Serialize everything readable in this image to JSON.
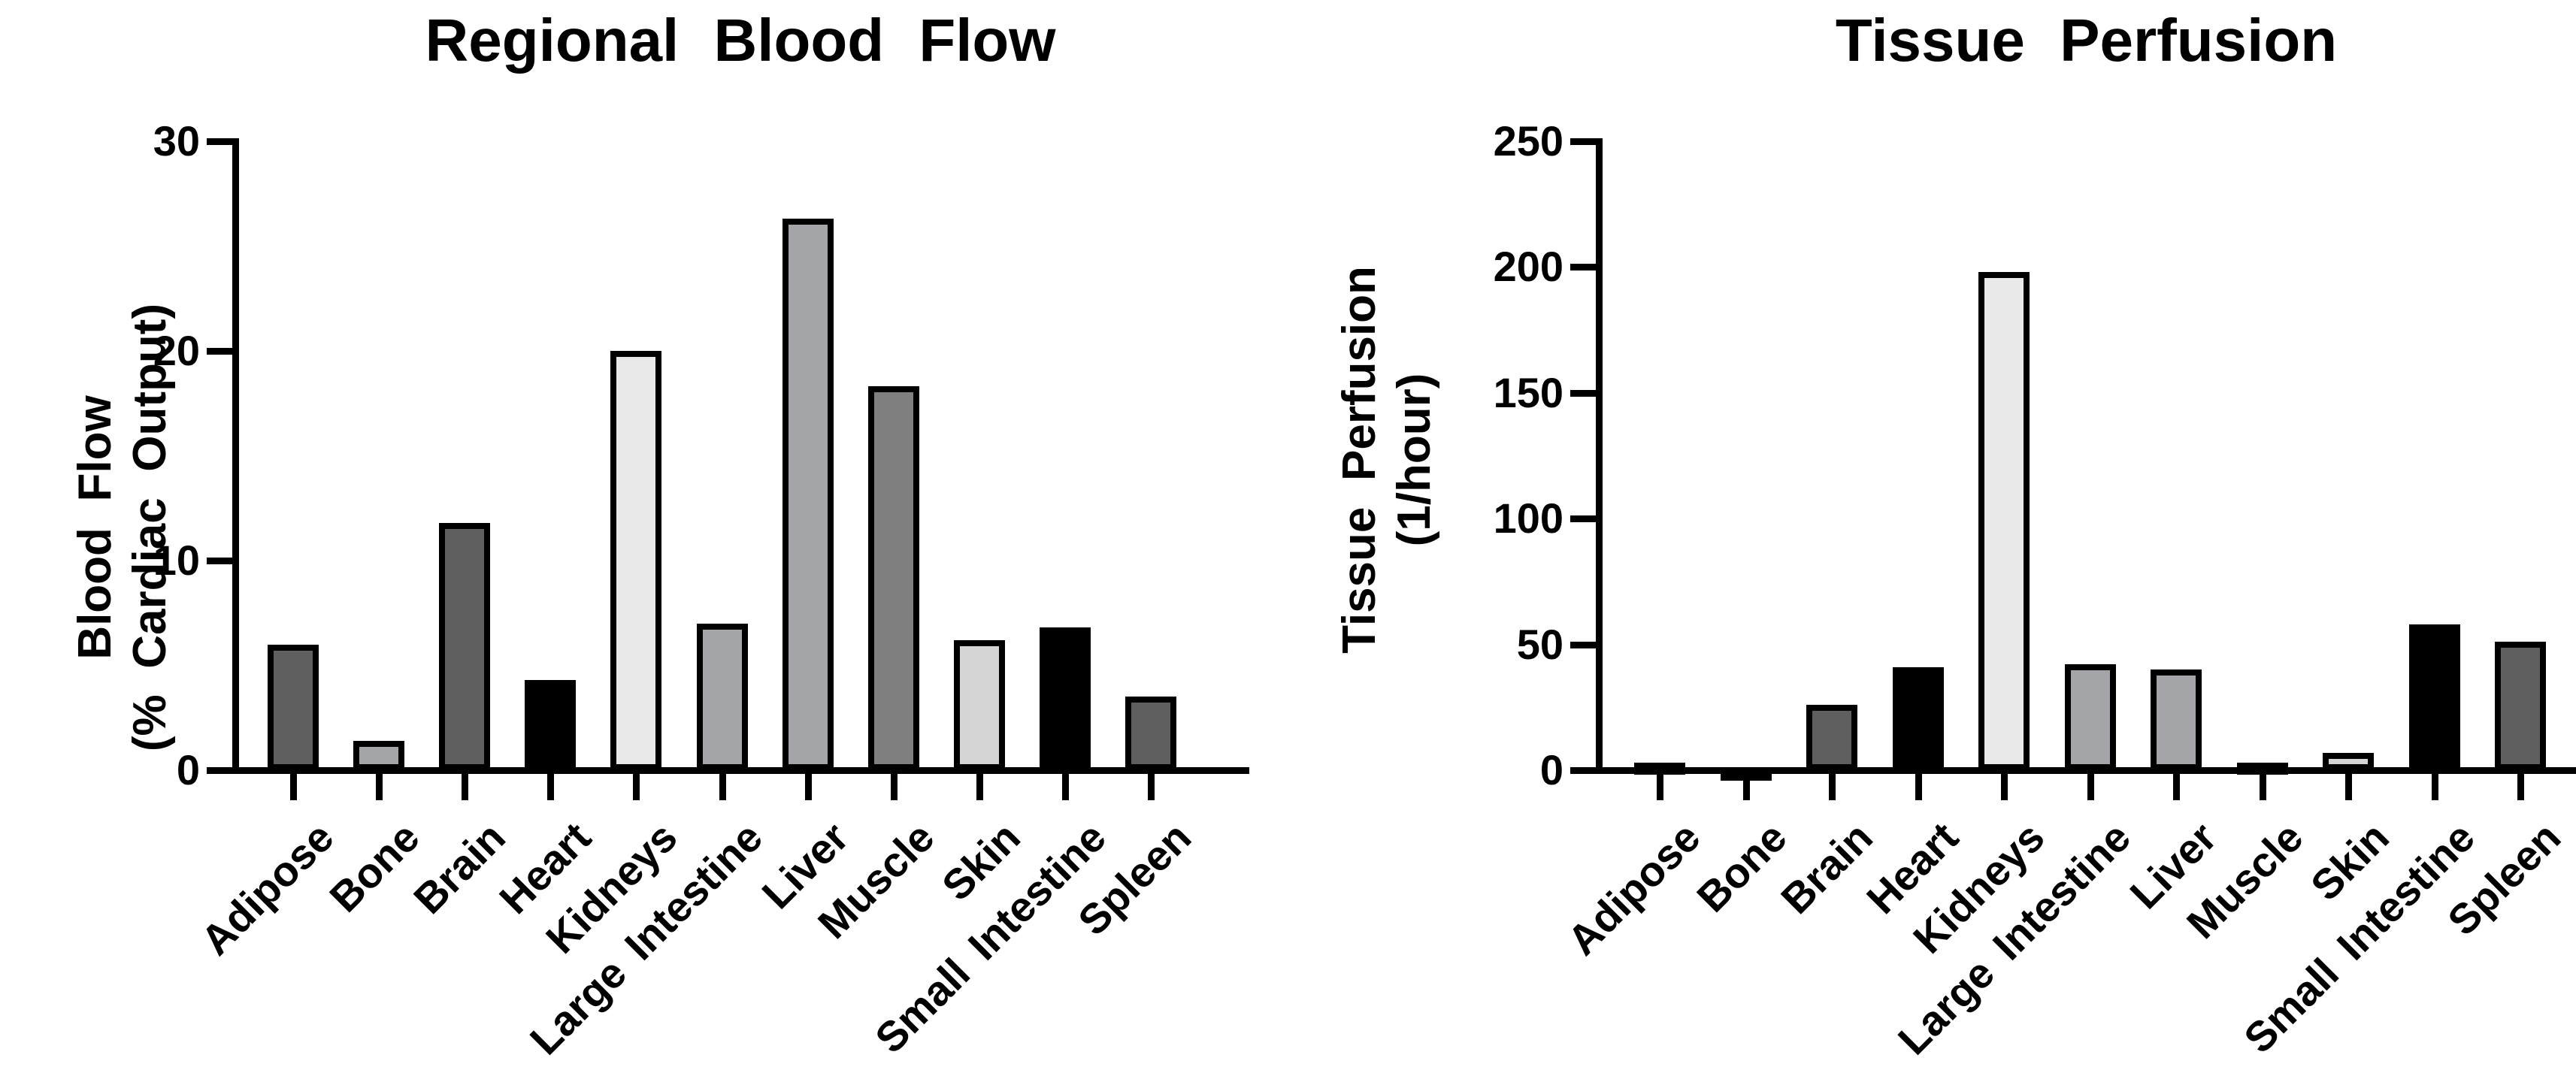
{
  "figure": {
    "background": "#ffffff",
    "text_color": "#000000",
    "axis_color": "#000000"
  },
  "chart_data": [
    {
      "type": "bar",
      "title": "Regional Blood Flow",
      "ylabel": "Blood Flow (% Cardiac Output)",
      "ylabel_lines": [
        "Blood Flow",
        "(% Cardiac Output)"
      ],
      "xlabel": "",
      "categories": [
        "Adipose",
        "Bone",
        "Brain",
        "Heart",
        "Kidneys",
        "Large Intestine",
        "Liver",
        "Muscle",
        "Skin",
        "Small Intestine",
        "Spleen"
      ],
      "values": [
        6,
        1.4,
        11.8,
        4.3,
        20,
        7,
        26.3,
        18.3,
        6.2,
        6.8,
        3.5
      ],
      "bar_colors": [
        "#5f5f5f",
        "#a3a5a9",
        "#5f5f5f",
        "#000000",
        "#e9e9e9",
        "#a3a5a9",
        "#a3a5a9",
        "#7f7f7f",
        "#d5d5d5",
        "#000000",
        "#5f5f5f"
      ],
      "bar_outline_color": "#000000",
      "ylim": [
        0,
        30
      ],
      "yticks": [
        0,
        10,
        20,
        30
      ],
      "grid": false,
      "legend": null,
      "x_tick_label_rotation_deg": 45
    },
    {
      "type": "bar",
      "title": "Tissue Perfusion",
      "ylabel": "Tissue Perfusion (1/hour)",
      "ylabel_lines": [
        "Tissue Perfusion",
        "(1/hour)"
      ],
      "xlabel": "",
      "categories": [
        "Adipose",
        "Bone",
        "Brain",
        "Heart",
        "Kidneys",
        "Large Intestine",
        "Liver",
        "Muscle",
        "Skin",
        "Small Intestine",
        "Spleen"
      ],
      "values": [
        1,
        0.3,
        26,
        41,
        198,
        42,
        40,
        1.5,
        7,
        58,
        51
      ],
      "bar_colors": [
        "#5f5f5f",
        "#a3a5a9",
        "#5f5f5f",
        "#000000",
        "#e9e9e9",
        "#a3a5a9",
        "#a3a5a9",
        "#7f7f7f",
        "#d5d5d5",
        "#000000",
        "#5f5f5f"
      ],
      "bar_outline_color": "#000000",
      "ylim": [
        0,
        250
      ],
      "yticks": [
        0,
        50,
        100,
        150,
        200,
        250
      ],
      "grid": false,
      "legend": null,
      "x_tick_label_rotation_deg": 45
    }
  ]
}
